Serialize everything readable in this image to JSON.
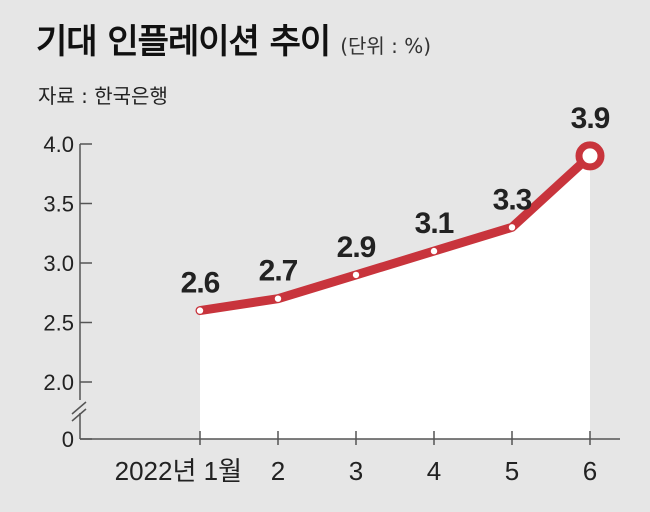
{
  "title": "기대 인플레이션 추이",
  "unit": "(단위 : %)",
  "source": "자료 : 한국은행",
  "colors": {
    "line": "#c8343c",
    "area": "#ffffff",
    "background": "#e6e6e6",
    "watermark": "#d2d2d2"
  },
  "chart_data": {
    "type": "line",
    "categories": [
      "2022년 1월",
      "2",
      "3",
      "4",
      "5",
      "6"
    ],
    "values": [
      2.6,
      2.7,
      2.9,
      3.1,
      3.3,
      3.9
    ],
    "data_labels": [
      "2.6",
      "2.7",
      "2.9",
      "3.1",
      "3.3",
      "3.9"
    ],
    "ylim": [
      2.0,
      4.0
    ],
    "y_axis_break": true,
    "yticks": [
      "4.0",
      "3.5",
      "3.0",
      "2.5",
      "2.0",
      "0"
    ],
    "grid": false,
    "legend": "none",
    "watermark_icon": "percent-cycle-icon"
  }
}
